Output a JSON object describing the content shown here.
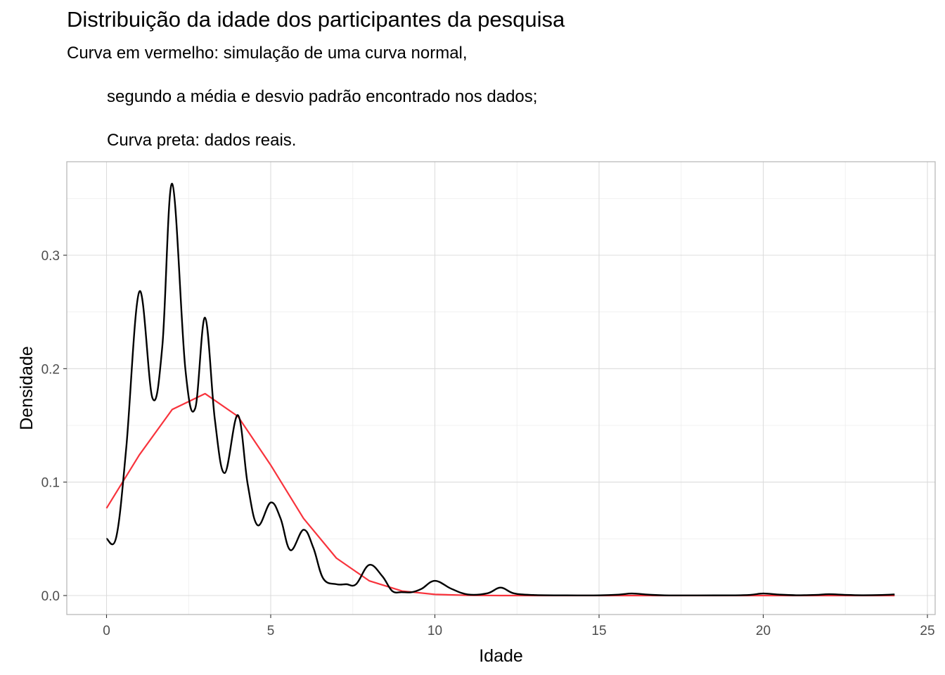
{
  "chart_data": {
    "type": "line",
    "title": "Distribuição da idade dos participantes da pesquisa",
    "subtitle_lines": [
      "Curva em vermelho: simulação de uma curva normal,",
      "segundo a média e desvio padrão encontrado nos dados;",
      "Curva preta: dados reais."
    ],
    "xlabel": "Idade",
    "ylabel": "Densidade",
    "xlim": [
      -1.2,
      25.2
    ],
    "ylim": [
      -0.0175,
      0.382
    ],
    "x_ticks": [
      0,
      5,
      10,
      15,
      20,
      25
    ],
    "x_tick_labels": [
      "0",
      "5",
      "10",
      "15",
      "20",
      "25"
    ],
    "y_ticks": [
      0.0,
      0.1,
      0.2,
      0.3
    ],
    "y_tick_labels": [
      "0.0",
      "0.1",
      "0.2",
      "0.3"
    ],
    "grid": true,
    "colors": {
      "normal": "#F8333C",
      "real": "#000000",
      "grid": "#dcdcdc",
      "panel_border": "#b3b3b3"
    },
    "series": [
      {
        "key": "normal",
        "x": [
          0,
          1,
          2,
          3,
          4,
          5,
          6,
          7,
          8,
          9,
          10,
          11,
          12,
          13,
          14,
          15,
          16,
          17,
          18,
          19,
          20,
          21,
          22,
          23,
          24
        ],
        "values": [
          0.077,
          0.124,
          0.164,
          0.178,
          0.158,
          0.115,
          0.068,
          0.033,
          0.013,
          0.004,
          0.001,
          0.0002,
          0,
          0,
          0,
          0,
          0,
          0,
          0,
          0,
          0,
          0,
          0,
          0,
          0
        ]
      },
      {
        "key": "real",
        "x": [
          0,
          0.3,
          0.6,
          1.0,
          1.4,
          1.7,
          2.0,
          2.4,
          2.7,
          3.0,
          3.3,
          3.6,
          4.0,
          4.3,
          4.6,
          5.0,
          5.3,
          5.6,
          6.0,
          6.3,
          6.6,
          7.0,
          7.3,
          7.6,
          8.0,
          8.4,
          8.7,
          9.0,
          9.3,
          9.6,
          10.0,
          10.5,
          11.0,
          11.6,
          12.0,
          12.4,
          13.0,
          14.0,
          15.0,
          15.6,
          16.0,
          16.5,
          17.0,
          18.0,
          19.0,
          19.6,
          20.0,
          20.5,
          21.0,
          21.6,
          22.0,
          22.5,
          23.0,
          23.6,
          24.0
        ],
        "values": [
          0.05,
          0.052,
          0.13,
          0.268,
          0.174,
          0.22,
          0.363,
          0.2,
          0.165,
          0.245,
          0.155,
          0.108,
          0.159,
          0.098,
          0.062,
          0.082,
          0.068,
          0.04,
          0.058,
          0.042,
          0.015,
          0.01,
          0.01,
          0.01,
          0.027,
          0.017,
          0.004,
          0.003,
          0.003,
          0.006,
          0.013,
          0.006,
          0.001,
          0.002,
          0.007,
          0.002,
          0.0005,
          0.0002,
          0.0002,
          0.0008,
          0.0018,
          0.0008,
          0.0002,
          0.0001,
          0.0002,
          0.0006,
          0.0018,
          0.0008,
          0.0003,
          0.0006,
          0.0012,
          0.0006,
          0.0003,
          0.0005,
          0.001
        ]
      }
    ]
  }
}
